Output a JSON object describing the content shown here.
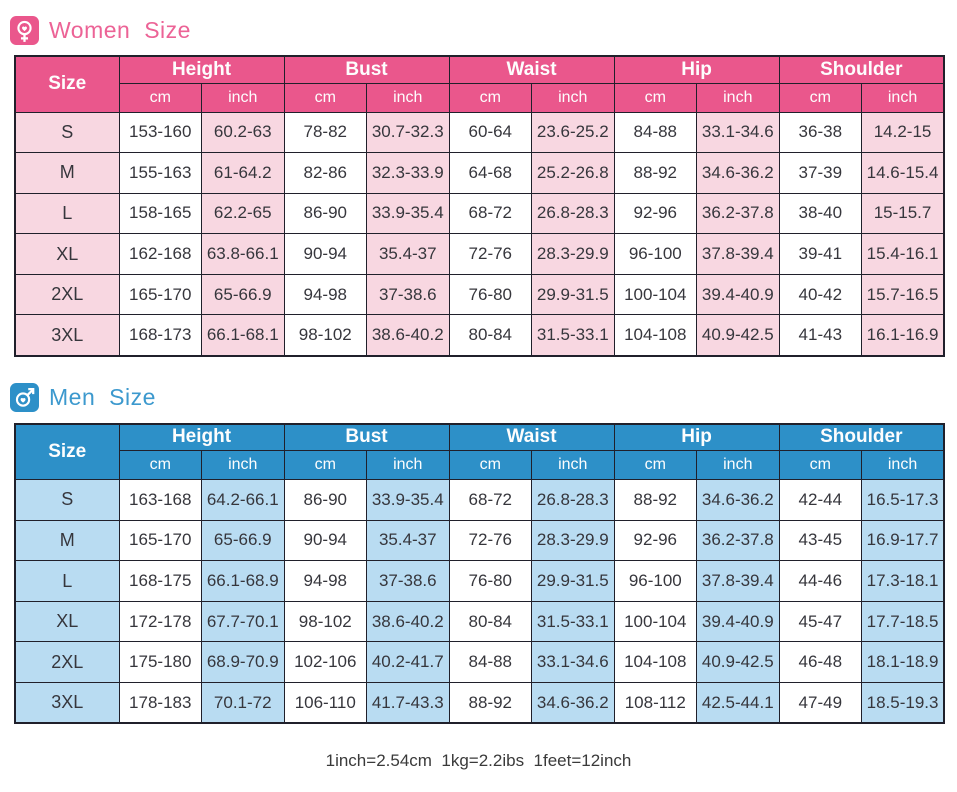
{
  "women": {
    "title": "Women Size",
    "icon": "female-symbol-icon",
    "accent": "#ea578c",
    "tint": "#f8d7e1",
    "title_color": "#ec6396",
    "size_label": "Size",
    "groups": [
      "Height",
      "Bust",
      "Waist",
      "Hip",
      "Shoulder"
    ],
    "unit_labels": [
      "cm",
      "inch"
    ],
    "rows": [
      {
        "size": "S",
        "cells": [
          "153-160",
          "60.2-63",
          "78-82",
          "30.7-32.3",
          "60-64",
          "23.6-25.2",
          "84-88",
          "33.1-34.6",
          "36-38",
          "14.2-15"
        ]
      },
      {
        "size": "M",
        "cells": [
          "155-163",
          "61-64.2",
          "82-86",
          "32.3-33.9",
          "64-68",
          "25.2-26.8",
          "88-92",
          "34.6-36.2",
          "37-39",
          "14.6-15.4"
        ]
      },
      {
        "size": "L",
        "cells": [
          "158-165",
          "62.2-65",
          "86-90",
          "33.9-35.4",
          "68-72",
          "26.8-28.3",
          "92-96",
          "36.2-37.8",
          "38-40",
          "15-15.7"
        ]
      },
      {
        "size": "XL",
        "cells": [
          "162-168",
          "63.8-66.1",
          "90-94",
          "35.4-37",
          "72-76",
          "28.3-29.9",
          "96-100",
          "37.8-39.4",
          "39-41",
          "15.4-16.1"
        ]
      },
      {
        "size": "2XL",
        "cells": [
          "165-170",
          "65-66.9",
          "94-98",
          "37-38.6",
          "76-80",
          "29.9-31.5",
          "100-104",
          "39.4-40.9",
          "40-42",
          "15.7-16.5"
        ]
      },
      {
        "size": "3XL",
        "cells": [
          "168-173",
          "66.1-68.1",
          "98-102",
          "38.6-40.2",
          "80-84",
          "31.5-33.1",
          "104-108",
          "40.9-42.5",
          "41-43",
          "16.1-16.9"
        ]
      }
    ]
  },
  "men": {
    "title": "Men Size",
    "icon": "male-symbol-icon",
    "accent": "#2d90c8",
    "tint": "#b9dcf2",
    "title_color": "#3c99ce",
    "size_label": "Size",
    "groups": [
      "Height",
      "Bust",
      "Waist",
      "Hip",
      "Shoulder"
    ],
    "unit_labels": [
      "cm",
      "inch"
    ],
    "rows": [
      {
        "size": "S",
        "cells": [
          "163-168",
          "64.2-66.1",
          "86-90",
          "33.9-35.4",
          "68-72",
          "26.8-28.3",
          "88-92",
          "34.6-36.2",
          "42-44",
          "16.5-17.3"
        ]
      },
      {
        "size": "M",
        "cells": [
          "165-170",
          "65-66.9",
          "90-94",
          "35.4-37",
          "72-76",
          "28.3-29.9",
          "92-96",
          "36.2-37.8",
          "43-45",
          "16.9-17.7"
        ]
      },
      {
        "size": "L",
        "cells": [
          "168-175",
          "66.1-68.9",
          "94-98",
          "37-38.6",
          "76-80",
          "29.9-31.5",
          "96-100",
          "37.8-39.4",
          "44-46",
          "17.3-18.1"
        ]
      },
      {
        "size": "XL",
        "cells": [
          "172-178",
          "67.7-70.1",
          "98-102",
          "38.6-40.2",
          "80-84",
          "31.5-33.1",
          "100-104",
          "39.4-40.9",
          "45-47",
          "17.7-18.5"
        ]
      },
      {
        "size": "2XL",
        "cells": [
          "175-180",
          "68.9-70.9",
          "102-106",
          "40.2-41.7",
          "84-88",
          "33.1-34.6",
          "104-108",
          "40.9-42.5",
          "46-48",
          "18.1-18.9"
        ]
      },
      {
        "size": "3XL",
        "cells": [
          "178-183",
          "70.1-72",
          "106-110",
          "41.7-43.3",
          "88-92",
          "34.6-36.2",
          "108-112",
          "42.5-44.1",
          "47-49",
          "18.5-19.3"
        ]
      }
    ]
  },
  "footer": {
    "note": "1inch=2.54cm  1kg=2.2ibs  1feet=12inch"
  }
}
